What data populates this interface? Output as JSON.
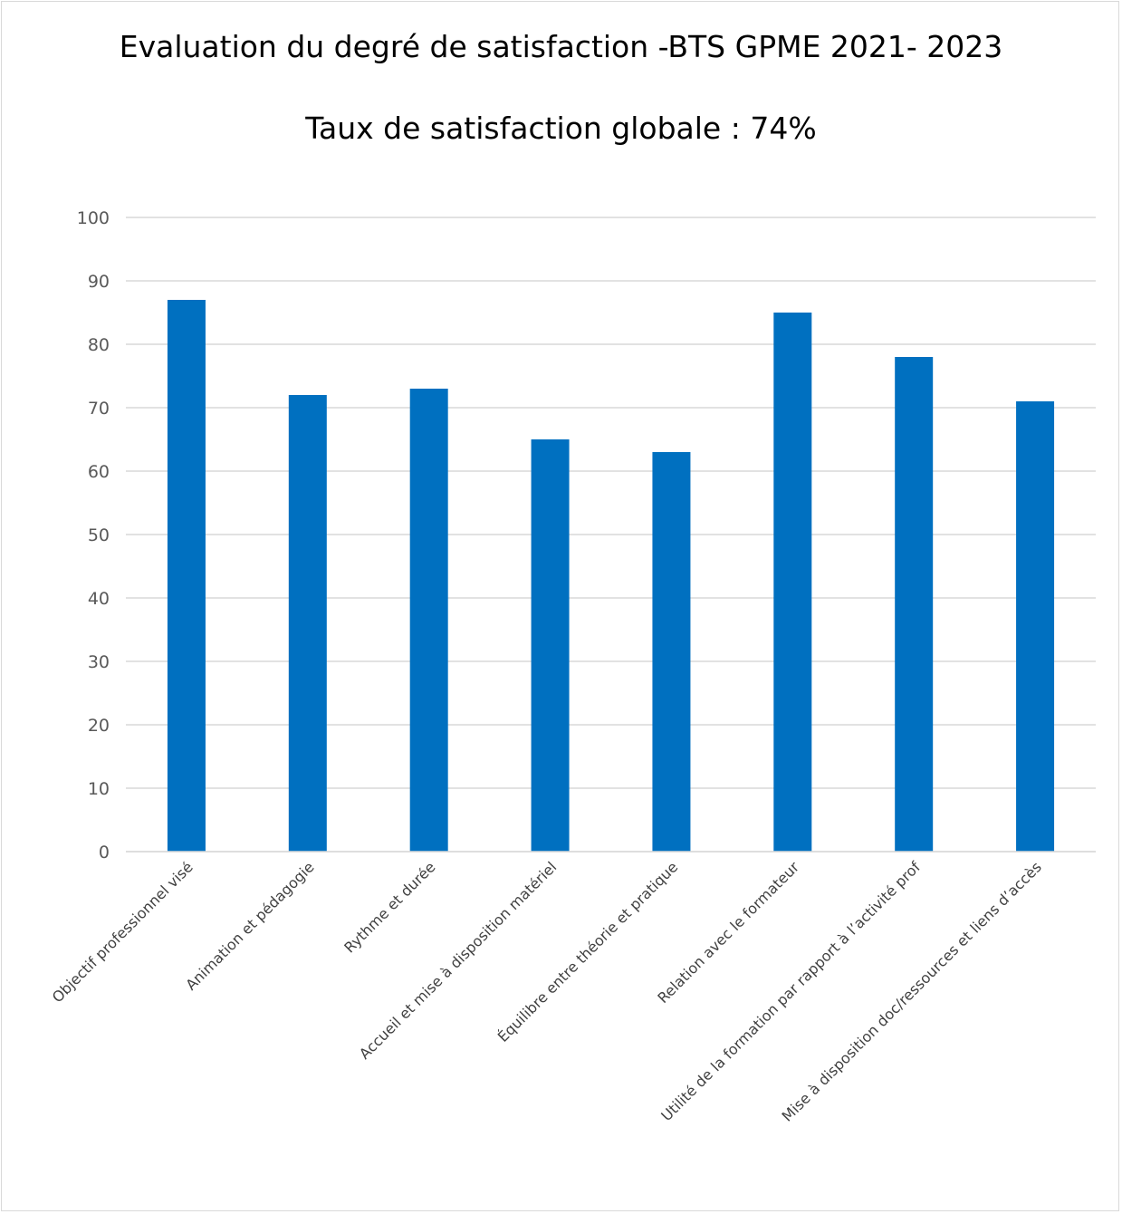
{
  "chart_data": {
    "type": "bar",
    "title": "Evaluation du degré de satisfaction -BTS GPME 2021- 2023",
    "subtitle": "Taux de satisfaction globale : 74%",
    "categories": [
      "Objectif professionnel visé",
      "Animation et pédagogie",
      "Rythme et  durée",
      "Accueil et mise à disposition matériel",
      "Équilibre entre théorie et pratique",
      "Relation avec le formateur",
      "Utilité de la formation par rapport à l’activité  prof",
      "Mise à disposition doc/ressources et liens d’accès"
    ],
    "values": [
      87,
      72,
      73,
      65,
      63,
      85,
      78,
      71
    ],
    "ylim": [
      0,
      100
    ],
    "yticks": [
      0,
      10,
      20,
      30,
      40,
      50,
      60,
      70,
      80,
      90,
      100
    ],
    "xlabel": "",
    "ylabel": "",
    "grid": true,
    "colors": {
      "bar": "#0070C0",
      "grid": "#d9d9d9",
      "tick_text": "#595959"
    }
  }
}
